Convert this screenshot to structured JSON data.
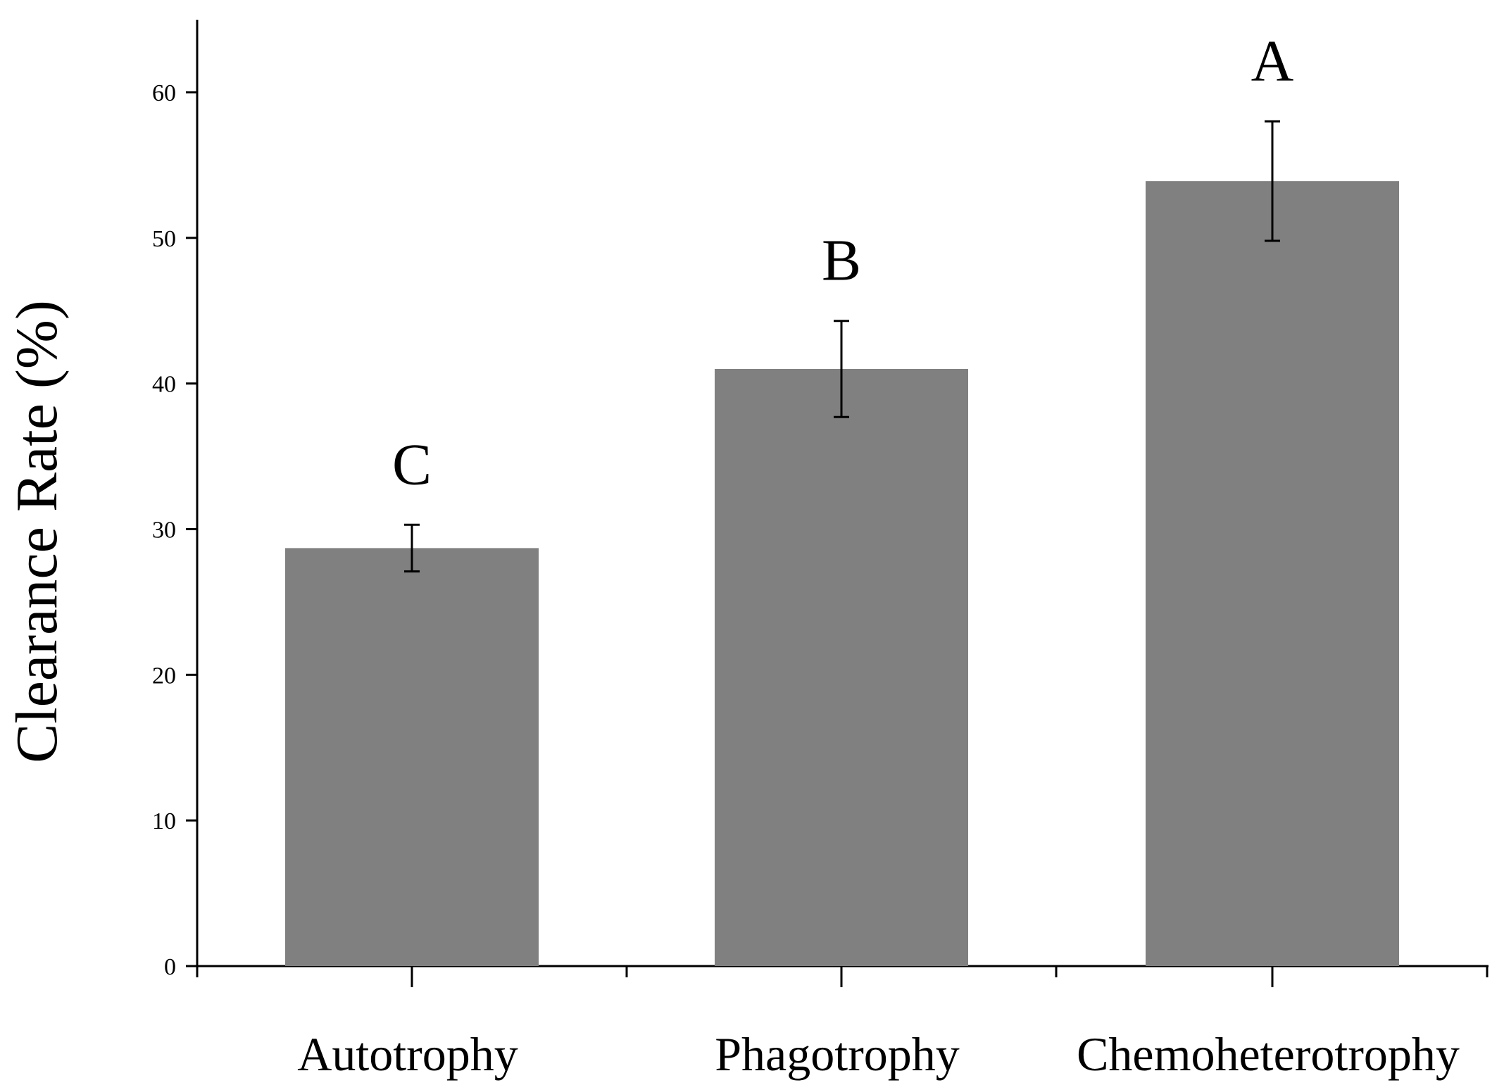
{
  "chart_data": {
    "type": "bar",
    "categories": [
      "Autotrophy",
      "Phagotrophy",
      "Chemoheterotrophy"
    ],
    "values": [
      28.7,
      41.0,
      53.9
    ],
    "error": [
      1.6,
      3.3,
      4.1
    ],
    "significance_labels": [
      "C",
      "B",
      "A"
    ],
    "ylabel": "Clearance Rate (%)",
    "xlabel": "",
    "ylim": [
      0,
      65
    ],
    "yticks": [
      0,
      10,
      20,
      30,
      40,
      50,
      60
    ],
    "grid": false,
    "bar_color": "#808080"
  }
}
